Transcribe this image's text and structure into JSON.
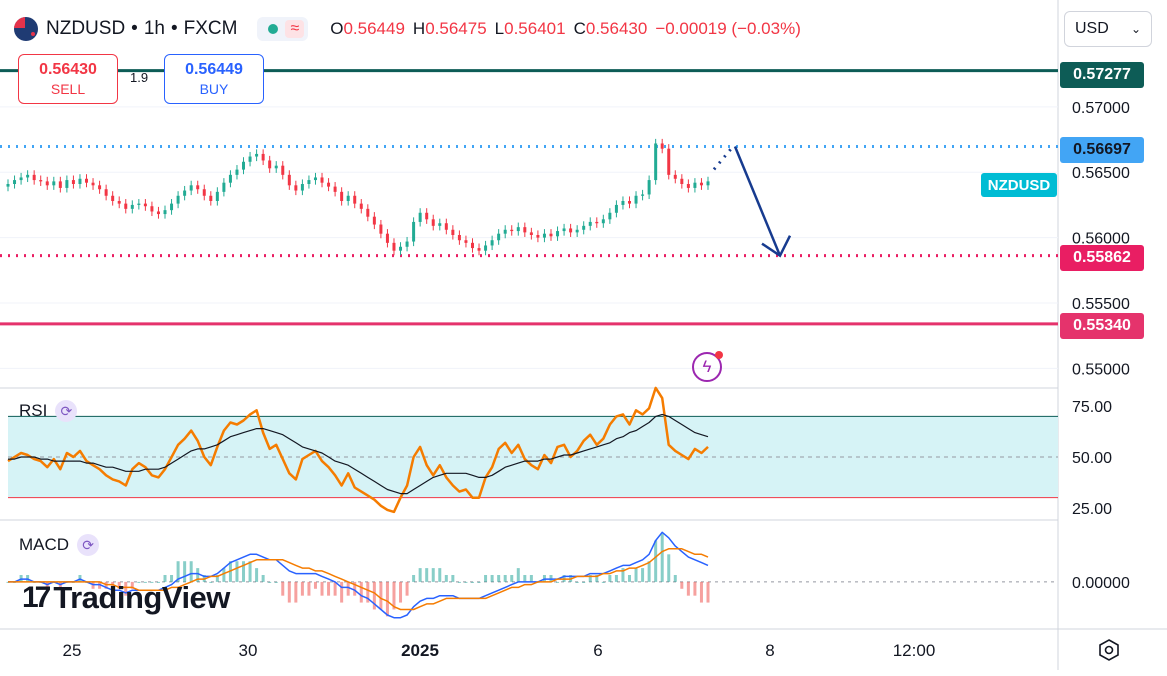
{
  "header": {
    "symbol": "NZDUSD",
    "interval": "1h",
    "exchange": "FXCM",
    "separator": "•",
    "open_label": "O",
    "open": "0.56449",
    "high_label": "H",
    "high": "0.56475",
    "low_label": "L",
    "low": "0.56401",
    "close_label": "C",
    "close": "0.56430",
    "change": "−0.00019 (−0.03%)"
  },
  "trade": {
    "sell_price": "0.56430",
    "sell_label": "SELL",
    "buy_price": "0.56449",
    "buy_label": "BUY",
    "spread": "1.9"
  },
  "currency": {
    "value": "USD",
    "icon": "chevron-down-icon"
  },
  "colors": {
    "up": "#22ab94",
    "down": "#f23645",
    "resistance": "#0d5c56",
    "dotted_blue": "#42a5f5",
    "dotted_pink": "#e91e63",
    "support": "#e5336c",
    "rsi": "#f57c00",
    "rsi_ma": "#131722",
    "rsi_band": "#d6f3f6",
    "macd": "#2962ff",
    "signal": "#f57c00",
    "arrow": "#173b8f",
    "symbol_tag": "#00bcd4"
  },
  "chart_data": [
    {
      "type": "candlestick",
      "title": "NZDUSD • 1h • FXCM",
      "symbol_tag": "NZDUSD",
      "ylim": [
        0.5485,
        0.5745
      ],
      "y_ticks": [
        "0.57000",
        "0.56500",
        "0.56000",
        "0.55500",
        "0.55000"
      ],
      "x_ticks": [
        "25",
        "30",
        "2025",
        "6",
        "8",
        "12:00"
      ],
      "price_tags": [
        {
          "value": "0.57277",
          "kind": "resistance"
        },
        {
          "value": "0.56697",
          "kind": "dotted_blue"
        },
        {
          "value": "0.55862",
          "kind": "dotted_pink"
        },
        {
          "value": "0.55340",
          "kind": "support"
        }
      ],
      "projection": {
        "from": 0.56697,
        "to": 0.55862
      },
      "close": [
        0.5641,
        0.5644,
        0.5646,
        0.5648,
        0.5644,
        0.5643,
        0.564,
        0.5643,
        0.5638,
        0.5644,
        0.5641,
        0.5645,
        0.5642,
        0.564,
        0.5637,
        0.5632,
        0.5628,
        0.5626,
        0.5622,
        0.5625,
        0.5626,
        0.5624,
        0.562,
        0.5618,
        0.5621,
        0.5626,
        0.5632,
        0.5636,
        0.564,
        0.5637,
        0.5632,
        0.5628,
        0.5635,
        0.5642,
        0.5648,
        0.5652,
        0.5658,
        0.5662,
        0.5664,
        0.5659,
        0.5653,
        0.5655,
        0.5648,
        0.564,
        0.5636,
        0.5641,
        0.5644,
        0.5646,
        0.5642,
        0.5639,
        0.5635,
        0.5628,
        0.5632,
        0.5626,
        0.5622,
        0.5616,
        0.561,
        0.5603,
        0.5596,
        0.559,
        0.5593,
        0.5597,
        0.5612,
        0.5619,
        0.5614,
        0.5609,
        0.5611,
        0.5606,
        0.5602,
        0.5598,
        0.5596,
        0.5592,
        0.559,
        0.5594,
        0.5598,
        0.5603,
        0.5606,
        0.5605,
        0.5608,
        0.5604,
        0.5602,
        0.56,
        0.5603,
        0.5601,
        0.5605,
        0.5607,
        0.5604,
        0.5606,
        0.5609,
        0.5612,
        0.5611,
        0.5614,
        0.5619,
        0.5625,
        0.5628,
        0.5626,
        0.5632,
        0.5633,
        0.5644,
        0.5672,
        0.5668,
        0.5648,
        0.5645,
        0.5641,
        0.5638,
        0.5642,
        0.564,
        0.5643
      ],
      "panels": [
        {
          "name": "RSI",
          "type": "line",
          "y_ticks": [
            "75.00",
            "50.00",
            "25.00"
          ],
          "ylim": [
            20,
            82
          ],
          "band": [
            30,
            70
          ],
          "series": [
            {
              "name": "RSI",
              "values": [
                48,
                50,
                52,
                51,
                49,
                48,
                45,
                49,
                44,
                52,
                50,
                53,
                48,
                46,
                44,
                41,
                39,
                38,
                36,
                44,
                47,
                45,
                41,
                40,
                44,
                50,
                56,
                59,
                63,
                58,
                50,
                46,
                55,
                63,
                67,
                66,
                68,
                71,
                73,
                62,
                54,
                56,
                49,
                42,
                39,
                49,
                51,
                53,
                48,
                45,
                41,
                36,
                42,
                35,
                33,
                31,
                29,
                26,
                24,
                23,
                30,
                36,
                50,
                55,
                46,
                41,
                46,
                40,
                36,
                33,
                34,
                30,
                30,
                40,
                45,
                54,
                57,
                52,
                56,
                49,
                46,
                44,
                51,
                47,
                55,
                56,
                50,
                53,
                58,
                61,
                56,
                59,
                66,
                70,
                71,
                66,
                73,
                71,
                74,
                84,
                79,
                56,
                53,
                51,
                49,
                54,
                52,
                55
              ]
            },
            {
              "name": "RSI MA",
              "values": [
                49,
                49,
                50,
                50,
                50,
                49,
                49,
                48,
                48,
                48,
                48,
                48,
                47,
                47,
                46,
                45,
                45,
                44,
                43,
                43,
                43,
                44,
                44,
                44,
                45,
                47,
                49,
                51,
                53,
                54,
                54,
                55,
                56,
                58,
                60,
                61,
                62,
                63,
                64,
                64,
                63,
                62,
                61,
                59,
                57,
                55,
                54,
                53,
                52,
                50,
                48,
                47,
                46,
                44,
                42,
                40,
                38,
                36,
                34,
                33,
                32,
                32,
                34,
                36,
                38,
                40,
                41,
                42,
                42,
                42,
                42,
                41,
                40,
                40,
                41,
                43,
                45,
                46,
                47,
                48,
                48,
                48,
                49,
                49,
                50,
                51,
                51,
                52,
                53,
                54,
                55,
                56,
                57,
                59,
                60,
                62,
                63,
                65,
                67,
                70,
                71,
                70,
                68,
                66,
                64,
                62,
                61,
                60
              ]
            }
          ]
        },
        {
          "name": "MACD",
          "type": "line",
          "y_ticks": [
            "0.00000"
          ],
          "ylim": [
            -0.0016,
            0.0021
          ],
          "series": [
            {
              "name": "MACD",
              "values": [
                0.0,
                0.0,
                0.0001,
                0.0001,
                0.0,
                0.0,
                -0.0001,
                0.0,
                -0.0001,
                0.0,
                0.0,
                0.0001,
                0.0,
                -0.0001,
                -0.0001,
                -0.0002,
                -0.0003,
                -0.0003,
                -0.0004,
                -0.0003,
                -0.0003,
                -0.0003,
                -0.0003,
                -0.0003,
                -0.0002,
                -0.0001,
                0.0001,
                0.0002,
                0.0003,
                0.0003,
                0.0002,
                0.0002,
                0.0003,
                0.0005,
                0.0007,
                0.0008,
                0.0009,
                0.001,
                0.001,
                0.0009,
                0.0008,
                0.0008,
                0.0006,
                0.0004,
                0.0003,
                0.0003,
                0.0003,
                0.0003,
                0.0002,
                0.0001,
                0.0,
                -0.0002,
                -0.0002,
                -0.0003,
                -0.0005,
                -0.0006,
                -0.0008,
                -0.001,
                -0.0012,
                -0.0013,
                -0.0013,
                -0.0012,
                -0.0009,
                -0.0007,
                -0.0006,
                -0.0006,
                -0.0005,
                -0.0005,
                -0.0005,
                -0.0006,
                -0.0006,
                -0.0006,
                -0.0006,
                -0.0005,
                -0.0004,
                -0.0003,
                -0.0002,
                -0.0001,
                0.0,
                0.0,
                0.0,
                0.0,
                0.0001,
                0.0001,
                0.0001,
                0.0002,
                0.0002,
                0.0002,
                0.0002,
                0.0003,
                0.0003,
                0.0003,
                0.0004,
                0.0005,
                0.0006,
                0.0006,
                0.0007,
                0.0008,
                0.001,
                0.0015,
                0.0018,
                0.0016,
                0.0013,
                0.0011,
                0.0009,
                0.0008,
                0.0007,
                0.0006
              ]
            },
            {
              "name": "Signal",
              "values": [
                0.0,
                0.0,
                0.0,
                0.0,
                0.0,
                0.0,
                0.0,
                0.0,
                0.0,
                0.0,
                0.0,
                0.0,
                0.0,
                0.0,
                0.0,
                -0.0001,
                -0.0001,
                -0.0002,
                -0.0002,
                -0.0002,
                -0.0003,
                -0.0003,
                -0.0003,
                -0.0003,
                -0.0003,
                -0.0002,
                -0.0002,
                -0.0001,
                0.0,
                0.0001,
                0.0001,
                0.0002,
                0.0002,
                0.0003,
                0.0004,
                0.0005,
                0.0006,
                0.0007,
                0.0008,
                0.0008,
                0.0008,
                0.0008,
                0.0008,
                0.0007,
                0.0006,
                0.0005,
                0.0005,
                0.0004,
                0.0004,
                0.0003,
                0.0002,
                0.0001,
                0.0,
                -0.0001,
                -0.0002,
                -0.0003,
                -0.0004,
                -0.0006,
                -0.0007,
                -0.0009,
                -0.001,
                -0.001,
                -0.001,
                -0.0009,
                -0.0008,
                -0.0008,
                -0.0007,
                -0.0006,
                -0.0006,
                -0.0006,
                -0.0006,
                -0.0006,
                -0.0006,
                -0.0006,
                -0.0005,
                -0.0004,
                -0.0003,
                -0.0002,
                -0.0002,
                -0.0001,
                -0.0001,
                0.0,
                0.0,
                0.0,
                0.0001,
                0.0001,
                0.0001,
                0.0002,
                0.0002,
                0.0002,
                0.0002,
                0.0003,
                0.0003,
                0.0004,
                0.0004,
                0.0005,
                0.0005,
                0.0006,
                0.0007,
                0.0009,
                0.0011,
                0.0012,
                0.0012,
                0.0012,
                0.0011,
                0.001,
                0.001,
                0.0009
              ]
            }
          ]
        }
      ]
    }
  ],
  "logo": {
    "mark": "17",
    "text": "TradingView"
  },
  "panel_icons": {
    "rsi": "cycle-icon",
    "macd": "cycle-icon"
  }
}
